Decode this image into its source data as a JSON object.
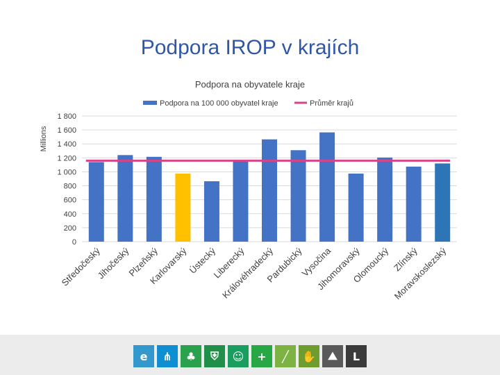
{
  "slide": {
    "title": "Podpora IROP v krajích"
  },
  "chart_data": {
    "type": "bar",
    "title": "Podpora na obyvatele kraje",
    "ylabel": "Millions",
    "xlabel": "",
    "ylim": [
      0,
      1800
    ],
    "yticks": [
      0,
      200,
      400,
      600,
      800,
      1000,
      1200,
      1400,
      1600,
      1800
    ],
    "ytick_labels": [
      "0",
      "200",
      "400",
      "600",
      "800",
      "1 000",
      "1 200",
      "1 400",
      "1 600",
      "1 800"
    ],
    "grid": true,
    "legend": {
      "position": "top",
      "entries": [
        "Podpora na 100 000 obyvatel kraje",
        "Průměr krajů"
      ]
    },
    "categories": [
      "Středočeský",
      "Jihočeský",
      "Plzeňský",
      "Karlovarský",
      "Ústecký",
      "Liberecký",
      "Královéhradecký",
      "Pardubický",
      "Vysočina",
      "Jihomoravský",
      "Olomoucký",
      "Zlínský",
      "Moravskoslezský"
    ],
    "series": [
      {
        "name": "Podpora na 100 000 obyvatel kraje",
        "type": "bar",
        "values": [
          1140,
          1240,
          1215,
          975,
          865,
          1160,
          1465,
          1310,
          1565,
          975,
          1205,
          1075,
          1120
        ]
      },
      {
        "name": "Průměr krajů",
        "type": "line",
        "values": [
          1160,
          1160,
          1160,
          1160,
          1160,
          1160,
          1160,
          1160,
          1160,
          1160,
          1160,
          1160,
          1160
        ]
      }
    ],
    "colors": {
      "bar": "#4472c4",
      "highlight": "#ffc000",
      "last": "#2e75b6",
      "average": "#d9438a",
      "grid": "#d9d9d9"
    }
  },
  "footer": {
    "icons": [
      {
        "name": "e-icon",
        "glyph": "e",
        "color": "#3399cc"
      },
      {
        "name": "network-icon",
        "glyph": "⋔",
        "color": "#0e8fd1"
      },
      {
        "name": "tree-icon",
        "glyph": "♣",
        "color": "#2aa14c"
      },
      {
        "name": "shield-icon",
        "glyph": "⛨",
        "color": "#1f8f4a"
      },
      {
        "name": "people-icon",
        "glyph": "☺",
        "color": "#1a9e60"
      },
      {
        "name": "plus-icon",
        "glyph": "+",
        "color": "#28a745"
      },
      {
        "name": "bandage-icon",
        "glyph": "╱",
        "color": "#7cb342"
      },
      {
        "name": "hand-icon",
        "glyph": "✋",
        "color": "#6f9c2f"
      },
      {
        "name": "climb-icon",
        "glyph": "⛰",
        "color": "#5a5a5a"
      },
      {
        "name": "corner-icon",
        "glyph": "L",
        "color": "#3b3b3b"
      }
    ]
  }
}
